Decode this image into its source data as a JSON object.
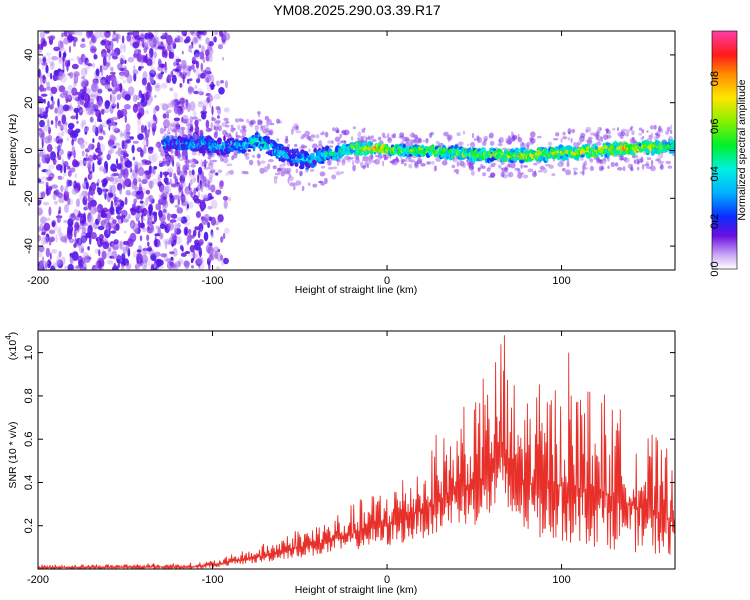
{
  "figure_title": "YM08.2025.290.03.39.R17",
  "colors": {
    "snr_line": "#e8302a",
    "low_signal": "#7b2be0",
    "axis": "#000000"
  },
  "chart_data": [
    {
      "type": "heatmap",
      "title": "YM08.2025.290.03.39.R17",
      "xlabel": "Height of straight line (km)",
      "ylabel": "Frequency (Hz)",
      "xlim": [
        -200,
        165
      ],
      "ylim": [
        -50,
        50
      ],
      "xticks": [
        -200,
        -100,
        0,
        100
      ],
      "xtick_labels": [
        "-200",
        "-100",
        "0",
        "100"
      ],
      "yticks": [
        -40,
        -20,
        0,
        20,
        40
      ],
      "ytick_labels": [
        "-40",
        "-20",
        "0",
        "20",
        "40"
      ],
      "colorbar": {
        "label": "Normalized spectral amplitude",
        "range": [
          0,
          1
        ],
        "ticks": [
          0.0,
          0.2,
          0.4,
          0.6,
          0.8
        ],
        "tick_labels": [
          "0.0",
          "0.2",
          "0.4",
          "0.6",
          "0.8"
        ]
      },
      "noise_region_x": [
        -200,
        -100
      ],
      "signal_onset_x": -128,
      "ridge": {
        "x": [
          -128,
          -110,
          -95,
          -85,
          -75,
          -65,
          -55,
          -45,
          -35,
          -25,
          -15,
          -5,
          5,
          20,
          40,
          60,
          80,
          100,
          120,
          140,
          165
        ],
        "frequency": [
          3,
          3,
          2,
          2,
          4,
          1,
          -3,
          -4,
          -2,
          0,
          1,
          1,
          0,
          0,
          -1,
          -2,
          -2,
          -1,
          0,
          1,
          2
        ],
        "amplitude": [
          0.25,
          0.3,
          0.3,
          0.32,
          0.4,
          0.38,
          0.3,
          0.35,
          0.4,
          0.5,
          0.7,
          0.85,
          0.65,
          0.6,
          0.55,
          0.6,
          0.7,
          0.65,
          0.7,
          0.75,
          0.55
        ],
        "width_hz": [
          4,
          5,
          5,
          5,
          6,
          6,
          6,
          6,
          5,
          4,
          4,
          3,
          3,
          3,
          4,
          4,
          4,
          4,
          4,
          4,
          4
        ]
      }
    },
    {
      "type": "line",
      "xlabel": "Height of straight line (km)",
      "ylabel": "SNR (10 * v/v)",
      "y_scale_label": "(x10",
      "y_scale_exponent": "4",
      "xlim": [
        -200,
        165
      ],
      "ylim": [
        0,
        1.1
      ],
      "xticks": [
        -200,
        -100,
        0,
        100
      ],
      "xtick_labels": [
        "-200",
        "-100",
        "0",
        "100"
      ],
      "yticks": [
        0.2,
        0.4,
        0.6,
        0.8,
        1.0
      ],
      "ytick_labels": [
        "0.2",
        "0.4",
        "0.6",
        "0.8",
        "1.0"
      ],
      "envelope": {
        "x": [
          -200,
          -150,
          -110,
          -95,
          -85,
          -70,
          -55,
          -40,
          -25,
          -10,
          0,
          10,
          25,
          40,
          55,
          65,
          70,
          80,
          100,
          120,
          140,
          165
        ],
        "max": [
          0.02,
          0.025,
          0.03,
          0.05,
          0.08,
          0.12,
          0.18,
          0.22,
          0.28,
          0.35,
          0.4,
          0.45,
          0.55,
          0.7,
          0.8,
          1.08,
          0.9,
          0.85,
          0.88,
          0.85,
          0.7,
          0.55
        ],
        "min": [
          0.0,
          0.0,
          0.0,
          0.01,
          0.02,
          0.03,
          0.05,
          0.06,
          0.08,
          0.1,
          0.1,
          0.12,
          0.15,
          0.2,
          0.2,
          0.25,
          0.2,
          0.15,
          0.12,
          0.1,
          0.08,
          0.05
        ]
      },
      "peaks": [
        {
          "x": 67,
          "y": 1.08
        },
        {
          "x": 104,
          "y": 1.0
        },
        {
          "x": 55,
          "y": 0.88
        },
        {
          "x": 115,
          "y": 0.82
        },
        {
          "x": 44,
          "y": 0.75
        },
        {
          "x": 28,
          "y": 0.62
        }
      ]
    }
  ]
}
